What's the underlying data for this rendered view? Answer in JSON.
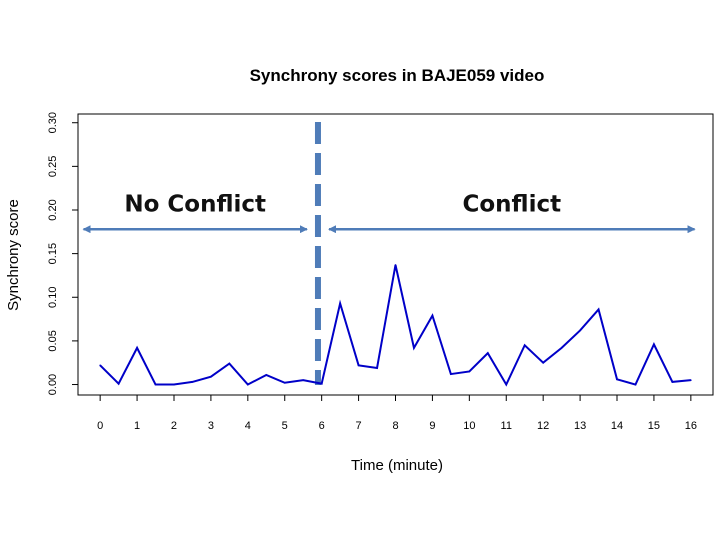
{
  "chart_data": {
    "type": "line",
    "title": "Synchrony scores in BAJE059 video",
    "xlabel": "Time (minute)",
    "ylabel": "Synchrony score",
    "xlim": [
      -0.6,
      16.6
    ],
    "ylim": [
      -0.012,
      0.31
    ],
    "x_ticks": [
      0,
      1,
      2,
      3,
      4,
      5,
      6,
      7,
      8,
      9,
      10,
      11,
      12,
      13,
      14,
      15,
      16
    ],
    "y_ticks": [
      0.0,
      0.05,
      0.1,
      0.15,
      0.2,
      0.25,
      0.3
    ],
    "y_tick_labels": [
      "0.00",
      "0.05",
      "0.10",
      "0.15",
      "0.20",
      "0.25",
      "0.30"
    ],
    "grid": false,
    "series": [
      {
        "color": "#0000c8",
        "x": [
          0,
          0.5,
          1,
          1.5,
          2,
          2.5,
          3,
          3.5,
          4,
          4.5,
          5,
          5.5,
          6,
          6.5,
          7,
          7.5,
          8,
          8.5,
          9,
          9.5,
          10,
          10.5,
          11,
          11.5,
          12,
          12.5,
          13,
          13.5,
          14,
          14.5,
          15,
          15.5,
          16
        ],
        "values": [
          0.022,
          0.001,
          0.042,
          0.0,
          0.0,
          0.003,
          0.009,
          0.024,
          0.0,
          0.011,
          0.002,
          0.005,
          0.001,
          0.093,
          0.022,
          0.019,
          0.137,
          0.042,
          0.079,
          0.012,
          0.015,
          0.036,
          0.0,
          0.045,
          0.025,
          0.042,
          0.062,
          0.086,
          0.006,
          0.0,
          0.046,
          0.003,
          0.005
        ]
      }
    ],
    "annotations": {
      "divider_x": 5.9,
      "divider_color": "#4f7cb8",
      "arrow_color": "#4f7cb8",
      "regions": [
        {
          "label": "No Conflict",
          "from": -0.45,
          "to": 5.6
        },
        {
          "label": "Conflict",
          "from": 6.2,
          "to": 16.1
        }
      ]
    }
  }
}
